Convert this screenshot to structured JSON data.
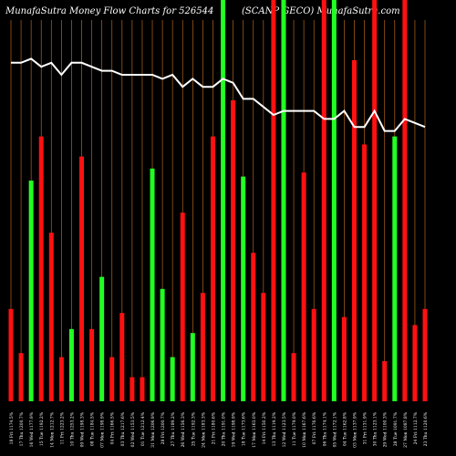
{
  "chart_data": {
    "type": "bar",
    "title": "MunafaSutra  Money Flow  Charts for 526544",
    "subtitle": "(SCANP GECO)  MunafaSutra.com",
    "colors": {
      "background": "#000000",
      "up": "#22ff22",
      "down": "#ff1111",
      "grid": "#b5651d",
      "line": "#ffffff"
    },
    "ylim": [
      0,
      100
    ],
    "bars": [
      {
        "value": 23,
        "color": "red",
        "label": "18 Fri 1174.5%"
      },
      {
        "value": 12,
        "color": "red",
        "label": "17 Thu 1200.7%"
      },
      {
        "value": 55,
        "color": "green",
        "label": "16 Wed 1177.9%"
      },
      {
        "value": 66,
        "color": "red",
        "label": "15 Tue 1192.2%"
      },
      {
        "value": 42,
        "color": "red",
        "label": "14 Mon 1212.7%"
      },
      {
        "value": 11,
        "color": "red",
        "label": "11 Fri 1223.2%"
      },
      {
        "value": 18,
        "color": "green",
        "label": "10 Thu 1253.2%"
      },
      {
        "value": 61,
        "color": "red",
        "label": "09 Wed 1198.3%"
      },
      {
        "value": 18,
        "color": "red",
        "label": "08 Tue 1184.5%"
      },
      {
        "value": 31,
        "color": "green",
        "label": "07 Mon 1198.9%"
      },
      {
        "value": 11,
        "color": "red",
        "label": "04 Fri 1166.5%"
      },
      {
        "value": 22,
        "color": "red",
        "label": "03 Thu 1217.6%"
      },
      {
        "value": 6,
        "color": "red",
        "label": "02 Wed 1153.5%"
      },
      {
        "value": 6,
        "color": "red",
        "label": "01 Tue 1212.4%"
      },
      {
        "value": 58,
        "color": "green",
        "label": "31 Mon 1206.9%"
      },
      {
        "value": 28,
        "color": "green",
        "label": "28 Fri 1200.7%"
      },
      {
        "value": 11,
        "color": "green",
        "label": "27 Thu 1189.2%"
      },
      {
        "value": 47,
        "color": "red",
        "label": "26 Wed 1156.3%"
      },
      {
        "value": 17,
        "color": "green",
        "label": "25 Tue 1192.3%"
      },
      {
        "value": 27,
        "color": "red",
        "label": "24 Mon 1183.3%"
      },
      {
        "value": 66,
        "color": "red",
        "label": "21 Fri 1180.6%"
      },
      {
        "value": 100,
        "color": "green",
        "label": "20 Thu 1191.0%"
      },
      {
        "value": 75,
        "color": "red",
        "label": "19 Wed 1198.9%"
      },
      {
        "value": 56,
        "color": "green",
        "label": "18 Tue 1173.6%"
      },
      {
        "value": 37,
        "color": "red",
        "label": "17 Mon 1163.0%"
      },
      {
        "value": 27,
        "color": "red",
        "label": "14 Fri 1150.2%"
      },
      {
        "value": 100,
        "color": "red",
        "label": "13 Thu 1119.2%"
      },
      {
        "value": 100,
        "color": "green",
        "label": "12 Wed 1123.5%"
      },
      {
        "value": 12,
        "color": "red",
        "label": "11 Tue 1179.0%"
      },
      {
        "value": 57,
        "color": "red",
        "label": "10 Mon 1167.6%"
      },
      {
        "value": 23,
        "color": "red",
        "label": "07 Fri 1176.6%"
      },
      {
        "value": 100,
        "color": "red",
        "label": "06 Thu 1174.1%"
      },
      {
        "value": 100,
        "color": "green",
        "label": "05 Wed 1172.1%"
      },
      {
        "value": 21,
        "color": "red",
        "label": "04 Tue 1162.8%"
      },
      {
        "value": 85,
        "color": "red",
        "label": "03 Mon 1137.9%"
      },
      {
        "value": 64,
        "color": "red",
        "label": "31 Fri 1131.9%"
      },
      {
        "value": 100,
        "color": "red",
        "label": "30 Thu 1123.1%"
      },
      {
        "value": 10,
        "color": "red",
        "label": "29 Wed 1100.3%"
      },
      {
        "value": 66,
        "color": "green",
        "label": "28 Tue 1091.7%"
      },
      {
        "value": 100,
        "color": "red",
        "label": "27 Mon 1087.8%"
      },
      {
        "value": 19,
        "color": "red",
        "label": "24 Fri 1112.7%"
      },
      {
        "value": 23,
        "color": "red",
        "label": "23 Thu 1120.6%"
      }
    ],
    "price_line": [
      98,
      98,
      99,
      97,
      98,
      95,
      98,
      98,
      97,
      96,
      96,
      95,
      95,
      95,
      95,
      94,
      95,
      92,
      94,
      92,
      92,
      94,
      93,
      89,
      89,
      87,
      85,
      86,
      86,
      86,
      86,
      84,
      84,
      86,
      82,
      82,
      86,
      81,
      81,
      84,
      83,
      82
    ]
  }
}
